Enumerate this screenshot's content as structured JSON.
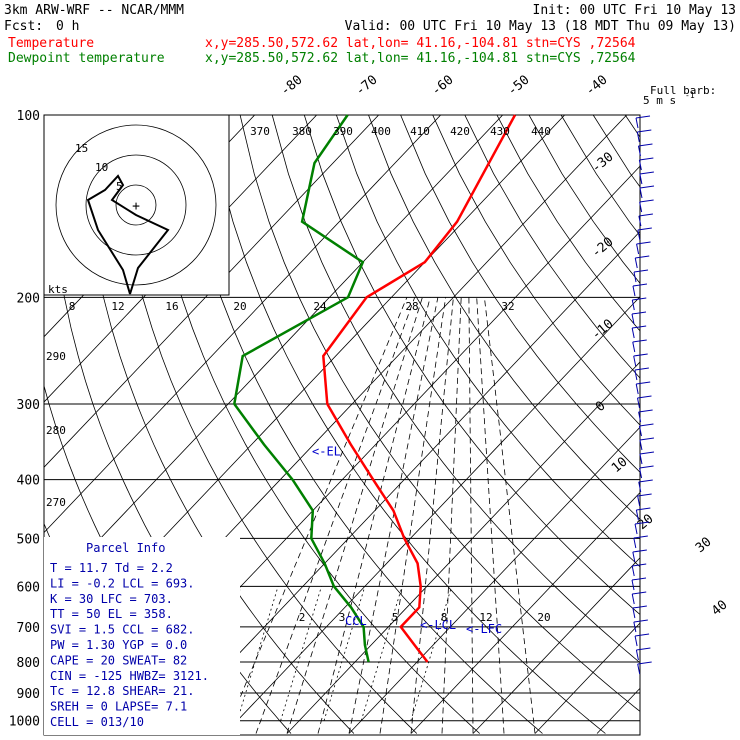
{
  "header": {
    "left_line1": "3km ARW-WRF -- NCAR/MMM",
    "right_line1": "Init: 00 UTC Fri 10 May 13",
    "left_line2": "Fcst:",
    "fcst_value": "0 h",
    "right_line2": "Valid: 00 UTC Fri 10 May 13 (18 MDT Thu 09 May 13)",
    "legend": [
      {
        "name": "Temperature",
        "info": "x,y=285.50,572.62   lat,lon= 41.16,-104.81   stn=CYS ,72564",
        "color": "#ff0000"
      },
      {
        "name": "Dewpoint temperature",
        "info": "x,y=285.50,572.62   lat,lon= 41.16,-104.81   stn=CYS ,72564",
        "color": "#008000"
      }
    ]
  },
  "barb_legend": {
    "line1": "Full barb:",
    "line2": "5 m s",
    "sup": "-1"
  },
  "hodograph": {
    "ring_labels": [
      "5",
      "10",
      "15"
    ],
    "unit": "kts",
    "speed_ticks": [
      "8",
      "12",
      "16",
      "20",
      "24",
      "28",
      "32"
    ]
  },
  "chart_data": {
    "type": "line",
    "title": "",
    "pressure_levels": [
      "100",
      "200",
      "300",
      "400",
      "500",
      "600",
      "700",
      "800",
      "900",
      "1000"
    ],
    "isotherm_labels": [
      "-80",
      "-70",
      "-60",
      "-50",
      "-40",
      "-30",
      "-20",
      "-10",
      "0",
      "10",
      "20",
      "30",
      "40"
    ],
    "theta_labels_top": [
      "370",
      "380",
      "390",
      "400",
      "410",
      "420",
      "430",
      "440"
    ],
    "theta_labels_left": [
      "290",
      "280",
      "270"
    ],
    "mixing_ratio_labels": [
      "2",
      "3",
      "5",
      "8",
      "12",
      "20"
    ],
    "series": [
      {
        "name": "Temperature",
        "color": "#ff0000",
        "points": [
          [
            100,
            -58
          ],
          [
            150,
            -51
          ],
          [
            175,
            -50
          ],
          [
            200,
            -54
          ],
          [
            250,
            -52
          ],
          [
            300,
            -44
          ],
          [
            350,
            -34
          ],
          [
            400,
            -25
          ],
          [
            450,
            -17
          ],
          [
            500,
            -11
          ],
          [
            550,
            -5
          ],
          [
            600,
            -1
          ],
          [
            650,
            2
          ],
          [
            700,
            2
          ],
          [
            750,
            7
          ],
          [
            800,
            11.7
          ]
        ]
      },
      {
        "name": "Dewpoint temperature",
        "color": "#008000",
        "points": [
          [
            100,
            -85
          ],
          [
            120,
            -83
          ],
          [
            150,
            -76
          ],
          [
            175,
            -60
          ],
          [
            200,
            -57
          ],
          [
            250,
            -65
          ],
          [
            300,
            -59
          ],
          [
            350,
            -48
          ],
          [
            400,
            -38
          ],
          [
            450,
            -30
          ],
          [
            500,
            -26
          ],
          [
            550,
            -20
          ],
          [
            600,
            -15
          ],
          [
            650,
            -9
          ],
          [
            700,
            -4
          ],
          [
            750,
            -1
          ],
          [
            800,
            2.2
          ]
        ]
      }
    ],
    "levels_marked": [
      {
        "label": "<-EL",
        "pressure": 358
      },
      {
        "label": "<-LCL",
        "pressure": 693
      },
      {
        "label": "<-LFC",
        "pressure": 703
      },
      {
        "label": "CCL",
        "pressure": 682
      }
    ]
  },
  "parcel_info": {
    "title": "Parcel Info",
    "rows": [
      "T   =   11.7  Td  =   2.2",
      "LI  =   -0.2  LCL =  693.",
      "K   =     30  LFC =  703.",
      "TT  =     50  EL  =  358.",
      "SVI =    1.5  CCL =  682.",
      "PW  =   1.30  YGP =   0.0",
      "CAPE =    20  SWEAT=   82",
      "CIN  =  -125  HWBZ= 3121.",
      "Tc  =   12.8  SHEAR=  21.",
      "SREH =     0  LAPSE=  7.1",
      "CELL = 013/10"
    ]
  }
}
